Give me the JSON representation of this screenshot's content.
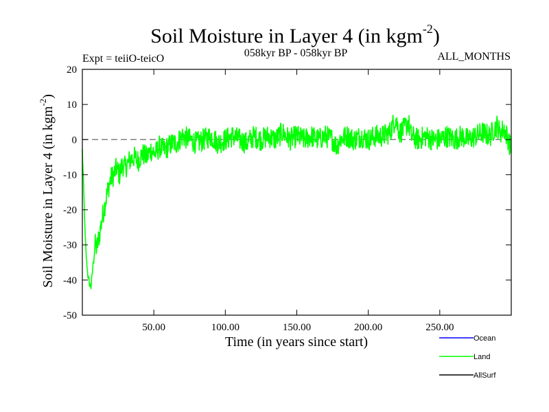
{
  "chart_data": {
    "type": "line",
    "title": "Soil Moisture in Layer 4 (in kgm",
    "title_sup": "-2",
    "title_close": ")",
    "subtitle_left": "Expt = teiiO-teicO",
    "subtitle_center": "058kyr BP - 058kyr BP",
    "subtitle_right": "ALL_MONTHS",
    "xlabel": "Time (in years since start)",
    "ylabel": "Soil Moisture in Layer 4 (in kgm",
    "ylabel_sup": "-2",
    "ylabel_close": ")",
    "xlim": [
      0,
      300
    ],
    "ylim": [
      -50,
      20
    ],
    "x_ticks": [
      50,
      100,
      150,
      200,
      250
    ],
    "x_tick_labels": [
      "50.00",
      "100.00",
      "150.00",
      "200.00",
      "250.00"
    ],
    "y_ticks": [
      20,
      10,
      0,
      -10,
      -20,
      -30,
      -40,
      -50
    ],
    "y_tick_labels": [
      "20",
      "10",
      "0",
      "-10",
      "-20",
      "-30",
      "-40",
      "-50"
    ],
    "zero_line": {
      "y": 0,
      "style": "dashed",
      "color": "#808080"
    },
    "grid": false,
    "legend_position": "bottom-right",
    "series": [
      {
        "name": "Ocean",
        "color": "#0000ff",
        "x": [],
        "y": []
      },
      {
        "name": "Land",
        "color": "#00ff00",
        "x": [
          0,
          1,
          2,
          3,
          4,
          5,
          6,
          7,
          8,
          9,
          10,
          12,
          14,
          16,
          18,
          20,
          22,
          24,
          26,
          28,
          30,
          33,
          36,
          39,
          42,
          45,
          48,
          51,
          54,
          57,
          60,
          63,
          66,
          70,
          75,
          80,
          85,
          90,
          95,
          100,
          105,
          110,
          115,
          120,
          125,
          130,
          135,
          140,
          145,
          150,
          155,
          160,
          165,
          170,
          175,
          178,
          180,
          185,
          190,
          195,
          200,
          205,
          210,
          215,
          219,
          222,
          225,
          228,
          230,
          235,
          240,
          245,
          250,
          255,
          260,
          265,
          270,
          275,
          280,
          285,
          288,
          290,
          292,
          295,
          298,
          300
        ],
        "y": [
          -3,
          -15,
          -28,
          -35,
          -39,
          -41,
          -42,
          -38,
          -33,
          -30,
          -31,
          -27,
          -22,
          -18,
          -14,
          -11,
          -10,
          -8,
          -10,
          -7,
          -8,
          -6,
          -5,
          -6,
          -4,
          -5,
          -3,
          -4,
          -2,
          -3,
          -2,
          -1,
          -1,
          1,
          0,
          -1,
          0,
          1,
          -1,
          0,
          1,
          0,
          -1,
          1,
          0,
          1,
          0,
          2,
          0,
          1,
          0,
          1,
          0,
          1,
          0,
          -2,
          0,
          1,
          0,
          1,
          0,
          1,
          1,
          2,
          6,
          2,
          3,
          5,
          1,
          0,
          1,
          0,
          0,
          1,
          0,
          1,
          0,
          1,
          2,
          1,
          3,
          4,
          2,
          3,
          0,
          -3
        ]
      },
      {
        "name": "AllSurf",
        "color": "#000000",
        "x": [],
        "y": []
      }
    ]
  }
}
